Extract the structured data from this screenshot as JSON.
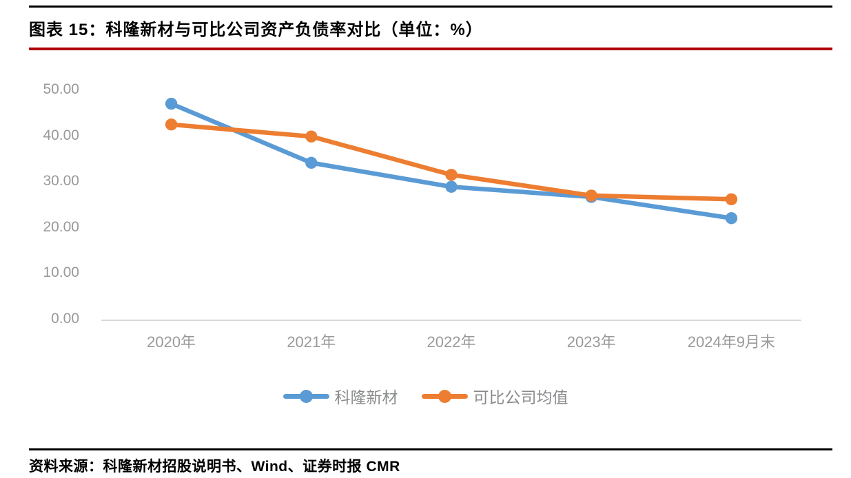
{
  "page": {
    "title": "图表 15：科隆新材与可比公司资产负债率对比（单位：%）",
    "source": "资料来源：科隆新材招股说明书、Wind、证券时报 CMR"
  },
  "colors": {
    "series_blue": "#5B9BD5",
    "series_orange": "#ED7D31",
    "title_rule": "#B00000",
    "top_rule": "#000000",
    "axis_line": "#DADADA",
    "tick_text": "#98999B"
  },
  "chart_data": {
    "type": "line",
    "title": "科隆新材与可比公司资产负债率对比",
    "unit": "%",
    "categories": [
      "2020年",
      "2021年",
      "2022年",
      "2023年",
      "2024年9月末"
    ],
    "series": [
      {
        "name": "科隆新材",
        "color": "#5B9BD5",
        "values": [
          47.0,
          34.2,
          29.0,
          26.8,
          22.2
        ]
      },
      {
        "name": "可比公司均值",
        "color": "#ED7D31",
        "values": [
          42.5,
          39.9,
          31.6,
          27.1,
          26.3
        ]
      }
    ],
    "ylim": [
      0,
      50
    ],
    "ytick_step": 10,
    "yticks": [
      "50.00",
      "40.00",
      "30.00",
      "20.00",
      "10.00",
      "0.00"
    ],
    "grid": false,
    "legend_position": "bottom",
    "marker": "circle"
  }
}
